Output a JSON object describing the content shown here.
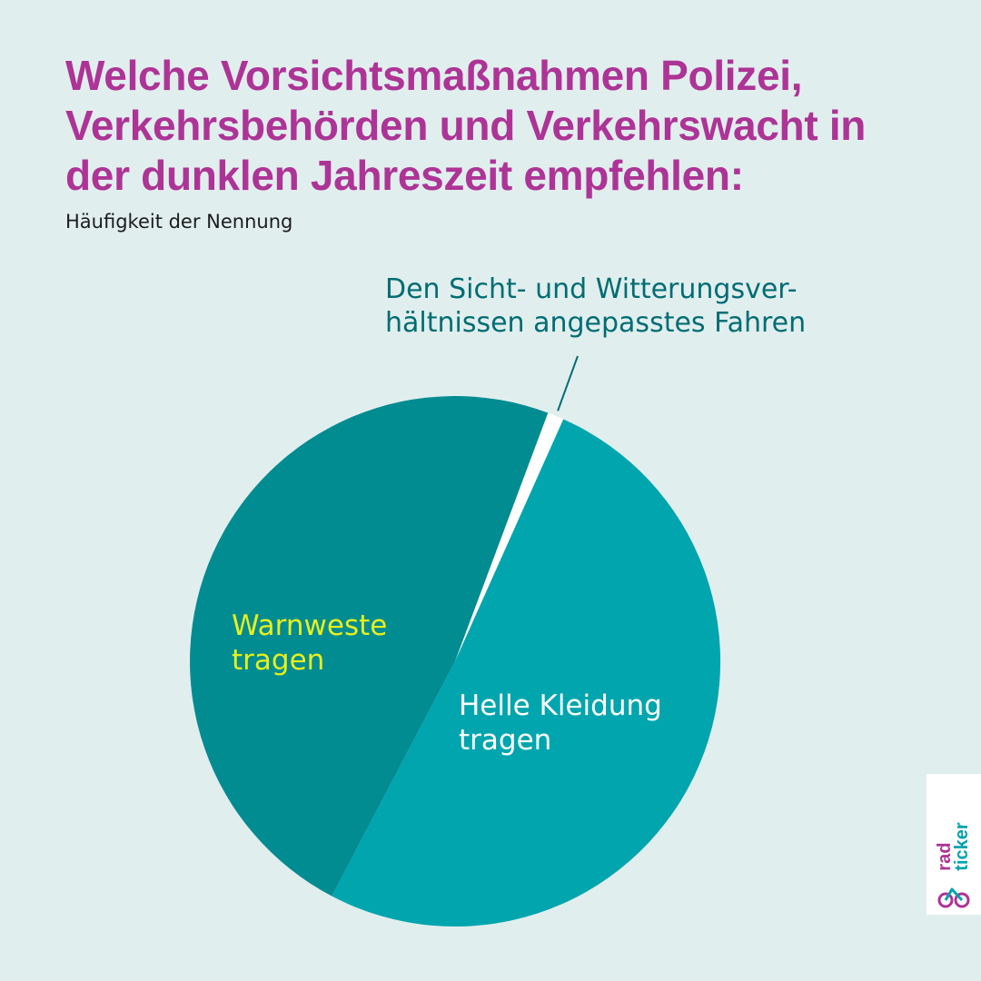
{
  "title_lines": [
    "Welche Vorsichtsmaßnahmen Polizei,",
    "Verkehrsbehörden und Verkehrswacht in",
    "der dunklen Jahreszeit empfehlen:"
  ],
  "subtitle": "Häufigkeit der Nennung",
  "chart_data": {
    "type": "pie",
    "title": "Welche Vorsichtsmaßnahmen Polizei, Verkehrsbehörden und Verkehrswacht in der dunklen Jahreszeit empfehlen:",
    "subtitle": "Häufigkeit der Nennung",
    "start_angle_deg": 0,
    "slices": [
      {
        "label_lines": [
          "Den Sicht- und Witterungsver-",
          "hältnissen angepasstes Fahren"
        ],
        "value": 1,
        "color": "#ffffff",
        "label_color": "#006d73"
      },
      {
        "label_lines": [
          "Helle Kleidung",
          "tragen"
        ],
        "value": 51,
        "color": "#00a5ae",
        "label_color": "#ffffff"
      },
      {
        "label_lines": [
          "Warnweste",
          "tragen"
        ],
        "value": 48,
        "color": "#008c91",
        "label_color": "#e9ef1c"
      }
    ]
  },
  "colors": {
    "background": "#e1eeee",
    "title": "#ad3496",
    "leader_line": "#006d73"
  },
  "logo": {
    "words": [
      "rad",
      "ticker"
    ],
    "icon": "bicycle-icon"
  }
}
